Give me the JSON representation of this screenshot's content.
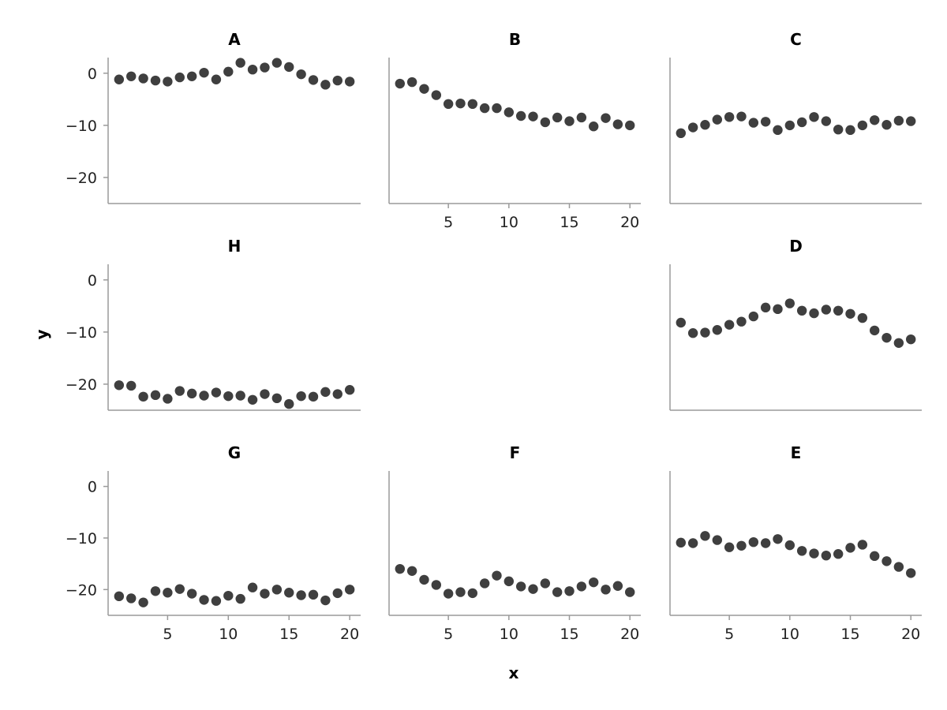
{
  "chart_data": {
    "type": "scatter",
    "xlabel": "x",
    "ylabel": "y",
    "ylim": [
      -25,
      3
    ],
    "xlim": [
      0.1,
      20.9
    ],
    "yticks": [
      0,
      -10,
      -20
    ],
    "xticks": [
      5,
      10,
      15,
      20
    ],
    "point_color": "#3f3f3f",
    "panels": [
      {
        "title": "A",
        "row": 0,
        "col": 0,
        "show_xticks": false,
        "show_yticks": true,
        "x": [
          1,
          2,
          3,
          4,
          5,
          6,
          7,
          8,
          9,
          10,
          11,
          12,
          13,
          14,
          15,
          16,
          17,
          18,
          19,
          20
        ],
        "y": [
          -1.2,
          -0.6,
          -1.0,
          -1.4,
          -1.6,
          -0.8,
          -0.6,
          0.1,
          -1.2,
          0.3,
          2.0,
          0.7,
          1.1,
          2.0,
          1.2,
          -0.2,
          -1.3,
          -2.2,
          -1.4,
          -1.6
        ]
      },
      {
        "title": "B",
        "row": 0,
        "col": 1,
        "show_xticks": true,
        "show_yticks": false,
        "x": [
          1,
          2,
          3,
          4,
          5,
          6,
          7,
          8,
          9,
          10,
          11,
          12,
          13,
          14,
          15,
          16,
          17,
          18,
          19,
          20
        ],
        "y": [
          -2.0,
          -1.7,
          -3.0,
          -4.2,
          -5.9,
          -5.8,
          -5.9,
          -6.7,
          -6.7,
          -7.5,
          -8.2,
          -8.3,
          -9.4,
          -8.5,
          -9.2,
          -8.5,
          -10.2,
          -8.6,
          -9.8,
          -10.0
        ]
      },
      {
        "title": "C",
        "row": 0,
        "col": 2,
        "show_xticks": false,
        "show_yticks": false,
        "x": [
          1,
          2,
          3,
          4,
          5,
          6,
          7,
          8,
          9,
          10,
          11,
          12,
          13,
          14,
          15,
          16,
          17,
          18,
          19,
          20
        ],
        "y": [
          -11.5,
          -10.4,
          -9.9,
          -8.9,
          -8.4,
          -8.3,
          -9.5,
          -9.3,
          -10.9,
          -10.0,
          -9.4,
          -8.4,
          -9.2,
          -10.8,
          -10.9,
          -10.0,
          -9.0,
          -9.9,
          -9.1,
          -9.2
        ]
      },
      {
        "title": "H",
        "row": 1,
        "col": 0,
        "show_xticks": false,
        "show_yticks": true,
        "x": [
          1,
          2,
          3,
          4,
          5,
          6,
          7,
          8,
          9,
          10,
          11,
          12,
          13,
          14,
          15,
          16,
          17,
          18,
          19,
          20
        ],
        "y": [
          -20.2,
          -20.3,
          -22.4,
          -22.1,
          -22.8,
          -21.3,
          -21.8,
          -22.2,
          -21.6,
          -22.3,
          -22.2,
          -23.0,
          -21.9,
          -22.7,
          -23.8,
          -22.3,
          -22.4,
          -21.5,
          -21.9,
          -21.1
        ]
      },
      {
        "title": "D",
        "row": 1,
        "col": 2,
        "show_xticks": false,
        "show_yticks": false,
        "x": [
          1,
          2,
          3,
          4,
          5,
          6,
          7,
          8,
          9,
          10,
          11,
          12,
          13,
          14,
          15,
          16,
          17,
          18,
          19,
          20
        ],
        "y": [
          -8.2,
          -10.2,
          -10.1,
          -9.6,
          -8.6,
          -8.0,
          -7.0,
          -5.3,
          -5.6,
          -4.5,
          -5.9,
          -6.4,
          -5.7,
          -5.9,
          -6.5,
          -7.3,
          -9.7,
          -11.1,
          -12.1,
          -11.4
        ]
      },
      {
        "title": "G",
        "row": 2,
        "col": 0,
        "show_xticks": true,
        "show_yticks": true,
        "x": [
          1,
          2,
          3,
          4,
          5,
          6,
          7,
          8,
          9,
          10,
          11,
          12,
          13,
          14,
          15,
          16,
          17,
          18,
          19,
          20
        ],
        "y": [
          -21.3,
          -21.7,
          -22.5,
          -20.3,
          -20.6,
          -19.9,
          -20.8,
          -22.0,
          -22.2,
          -21.2,
          -21.8,
          -19.6,
          -20.8,
          -20.0,
          -20.6,
          -21.1,
          -21.0,
          -22.1,
          -20.7,
          -20.0
        ]
      },
      {
        "title": "F",
        "row": 2,
        "col": 1,
        "show_xticks": true,
        "show_yticks": false,
        "x": [
          1,
          2,
          3,
          4,
          5,
          6,
          7,
          8,
          9,
          10,
          11,
          12,
          13,
          14,
          15,
          16,
          17,
          18,
          19,
          20
        ],
        "y": [
          -16.0,
          -16.4,
          -18.1,
          -19.1,
          -20.8,
          -20.5,
          -20.7,
          -18.8,
          -17.3,
          -18.4,
          -19.4,
          -19.9,
          -18.8,
          -20.5,
          -20.3,
          -19.4,
          -18.6,
          -20.0,
          -19.3,
          -20.5
        ]
      },
      {
        "title": "E",
        "row": 2,
        "col": 2,
        "show_xticks": true,
        "show_yticks": false,
        "x": [
          1,
          2,
          3,
          4,
          5,
          6,
          7,
          8,
          9,
          10,
          11,
          12,
          13,
          14,
          15,
          16,
          17,
          18,
          19,
          20
        ],
        "y": [
          -10.9,
          -11.0,
          -9.6,
          -10.4,
          -11.8,
          -11.5,
          -10.8,
          -11.0,
          -10.2,
          -11.4,
          -12.5,
          -13.0,
          -13.4,
          -13.1,
          -11.9,
          -11.3,
          -13.5,
          -14.5,
          -15.6,
          -16.8
        ]
      }
    ]
  }
}
